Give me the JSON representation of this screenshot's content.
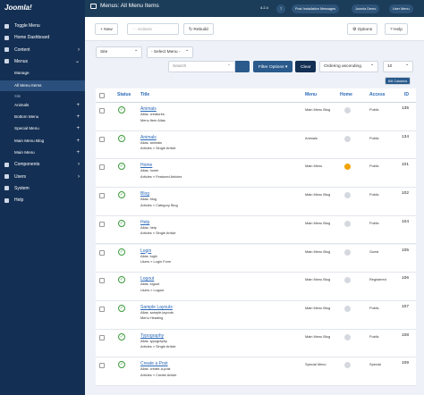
{
  "sidebar": {
    "logo": "Joomla!",
    "items": [
      {
        "label": "Toggle Menu",
        "icon": "toggle"
      },
      {
        "label": "Home Dashboard",
        "icon": "home"
      },
      {
        "label": "Content",
        "icon": "content",
        "arrow": true
      },
      {
        "label": "Menus",
        "icon": "menus",
        "open": true
      },
      {
        "label": "Manage",
        "sub": true
      },
      {
        "label": "All Menu Items",
        "sub": true,
        "active": true
      },
      {
        "label": "Site",
        "section": true
      },
      {
        "label": "Animals",
        "sub": true,
        "plus": true
      },
      {
        "label": "Bottom Menu",
        "sub": true,
        "plus": true
      },
      {
        "label": "Special Menu",
        "sub": true,
        "plus": true
      },
      {
        "label": "Main Menu Blog",
        "sub": true,
        "plus": true
      },
      {
        "label": "Main Menu",
        "sub": true,
        "plus": true
      },
      {
        "label": "Components",
        "icon": "components",
        "arrow": true
      },
      {
        "label": "Users",
        "icon": "users",
        "arrow": true
      },
      {
        "label": "System",
        "icon": "system"
      },
      {
        "label": "Help",
        "icon": "help"
      }
    ]
  },
  "header": {
    "title": "Menus: All Menu Items",
    "version": "4.2.4",
    "notifications": "7",
    "post_install": "Post Installation Messages",
    "site": "Joomla Demo",
    "user": "User Menu"
  },
  "toolbar": {
    "new": "New",
    "actions": "Actions",
    "rebuild": "Rebuild",
    "options": "Options",
    "help": "Help"
  },
  "filters": {
    "client": "Site",
    "menu": "- Select Menu -",
    "search": "Search",
    "filter_options": "Filter Options",
    "clear": "Clear",
    "ordering": "Ordering ascending",
    "limit": "10",
    "columns": "6/6 Columns"
  },
  "table": {
    "headers": [
      "Status",
      "Title",
      "Menu",
      "Home",
      "Access",
      "ID"
    ],
    "rows": [
      {
        "title": "Animals",
        "alias": "Alias: creatures",
        "type": "Menu Item Alias",
        "menu": "Main Menu Blog",
        "home": false,
        "access": "Public",
        "id": 135
      },
      {
        "title": "Animals",
        "alias": "Alias: animals",
        "type": "Articles » Single Article",
        "menu": "Animals",
        "home": false,
        "access": "Public",
        "id": 134
      },
      {
        "title": "Home",
        "alias": "Alias: home",
        "type": "Articles » Featured Articles",
        "menu": "Main Menu",
        "home": true,
        "access": "Public",
        "id": 101
      },
      {
        "title": "Blog",
        "alias": "Alias: blog",
        "type": "Articles » Category Blog",
        "menu": "Main Menu Blog",
        "home": false,
        "access": "Public",
        "id": 102
      },
      {
        "title": "Help",
        "alias": "Alias: help",
        "type": "Articles » Single Article",
        "menu": "Main Menu Blog",
        "home": false,
        "access": "Public",
        "id": 104
      },
      {
        "title": "Login",
        "alias": "Alias: login",
        "type": "Users » Login Form",
        "menu": "Main Menu Blog",
        "home": false,
        "access": "Guest",
        "id": 105
      },
      {
        "title": "Logout",
        "alias": "Alias: logout",
        "type": "Users » Logout",
        "menu": "Main Menu Blog",
        "home": false,
        "access": "Registered",
        "id": 106
      },
      {
        "title": "Sample Layouts",
        "alias": "Alias: sample-layouts",
        "type": "Menu Heading",
        "menu": "Main Menu Blog",
        "home": false,
        "access": "Public",
        "id": 107
      },
      {
        "title": "Typography",
        "alias": "Alias: typography",
        "type": "Articles » Single Article",
        "menu": "Main Menu Blog",
        "home": false,
        "access": "Public",
        "id": 108
      },
      {
        "title": "Create a Post",
        "alias": "Alias: create-a-post",
        "type": "Articles » Create Article",
        "menu": "Special Menu",
        "home": false,
        "access": "Special",
        "id": 109
      }
    ]
  }
}
